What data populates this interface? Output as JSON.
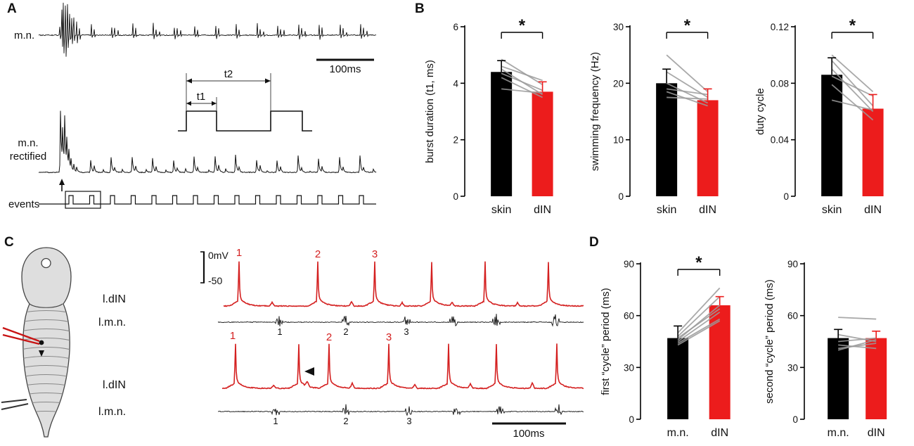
{
  "colors": {
    "trace_black": "#111111",
    "trace_red": "#d42020",
    "bar_black": "#000000",
    "bar_red": "#ec1c1c",
    "paired_gray": "#9a9a9a"
  },
  "panels": {
    "A": {
      "label": "A",
      "trace1_label": "m.n.",
      "scalebar_label": "100ms",
      "inset_t1": "t1",
      "inset_t2": "t2",
      "rectified_label_line1": "m.n.",
      "rectified_label_line2": "rectified",
      "events_label": "events"
    },
    "B": {
      "label": "B"
    },
    "C": {
      "label": "C",
      "voltage_scale_top": "0mV",
      "voltage_scale_bottom": "-50",
      "din_label": "l.dIN",
      "mn_label": "l.m.n.",
      "spike_numbers": [
        "1",
        "2",
        "3"
      ],
      "scalebar_label": "100ms"
    },
    "D": {
      "label": "D"
    }
  },
  "chart_data": [
    {
      "type": "bar",
      "ylabel": "burst duration (t1, ms)",
      "categories": [
        "skin",
        "dIN"
      ],
      "values": [
        4.4,
        3.7
      ],
      "errors": [
        0.4,
        0.35
      ],
      "bar_colors": [
        "#000000",
        "#ec1c1c"
      ],
      "ylim": [
        0,
        6
      ],
      "yticks": [
        0,
        2,
        4,
        6
      ],
      "ytick_labels": [
        "0",
        "2",
        "4",
        "6"
      ],
      "significance": "*",
      "paired_lines": [
        [
          4.85,
          3.95
        ],
        [
          4.6,
          4.1
        ],
        [
          4.5,
          3.6
        ],
        [
          4.35,
          3.75
        ],
        [
          4.2,
          3.5
        ],
        [
          3.8,
          3.65
        ]
      ]
    },
    {
      "type": "bar",
      "ylabel": "swimming frequency (Hz)",
      "categories": [
        "skin",
        "dIN"
      ],
      "values": [
        20,
        17
      ],
      "errors": [
        2.5,
        2
      ],
      "bar_colors": [
        "#000000",
        "#ec1c1c"
      ],
      "ylim": [
        0,
        30
      ],
      "yticks": [
        0,
        10,
        20,
        30
      ],
      "ytick_labels": [
        "0",
        "10",
        "20",
        "30"
      ],
      "significance": "*",
      "paired_lines": [
        [
          25,
          18.5
        ],
        [
          22,
          17.5
        ],
        [
          20,
          16.5
        ],
        [
          19,
          18
        ],
        [
          18.5,
          16
        ],
        [
          17.5,
          17.2
        ]
      ]
    },
    {
      "type": "bar",
      "ylabel": "duty cycle",
      "categories": [
        "skin",
        "dIN"
      ],
      "values": [
        0.086,
        0.062
      ],
      "errors": [
        0.012,
        0.01
      ],
      "bar_colors": [
        "#000000",
        "#ec1c1c"
      ],
      "ylim": [
        0,
        0.12
      ],
      "yticks": [
        0,
        0.04,
        0.08,
        0.12
      ],
      "ytick_labels": [
        "0",
        "0.04",
        "0.08",
        "0.12"
      ],
      "significance": "*",
      "paired_lines": [
        [
          0.1,
          0.074
        ],
        [
          0.096,
          0.064
        ],
        [
          0.09,
          0.06
        ],
        [
          0.085,
          0.071
        ],
        [
          0.079,
          0.054
        ],
        [
          0.068,
          0.061
        ]
      ]
    },
    {
      "type": "bar",
      "ylabel": "first “cycle” period (ms)",
      "categories": [
        "m.n.",
        "dIN"
      ],
      "values": [
        47,
        66
      ],
      "errors": [
        7,
        5
      ],
      "bar_colors": [
        "#000000",
        "#ec1c1c"
      ],
      "ylim": [
        0,
        90
      ],
      "yticks": [
        0,
        30,
        60,
        90
      ],
      "ytick_labels": [
        "0",
        "30",
        "60",
        "90"
      ],
      "significance": "*",
      "paired_lines": [
        [
          44,
          58
        ],
        [
          45,
          62
        ],
        [
          46,
          66
        ],
        [
          48,
          71
        ],
        [
          50,
          76
        ],
        [
          43,
          57
        ],
        [
          47,
          64
        ]
      ]
    },
    {
      "type": "bar",
      "ylabel": "second “cycle” period (ms)",
      "categories": [
        "m.n.",
        "dIN"
      ],
      "values": [
        47,
        47
      ],
      "errors": [
        5,
        4
      ],
      "bar_colors": [
        "#000000",
        "#ec1c1c"
      ],
      "ylim": [
        0,
        90
      ],
      "yticks": [
        0,
        30,
        60,
        90
      ],
      "ytick_labels": [
        "0",
        "30",
        "60",
        "90"
      ],
      "significance": null,
      "paired_lines": [
        [
          59,
          58
        ],
        [
          49,
          45
        ],
        [
          45,
          47
        ],
        [
          43,
          41
        ],
        [
          41,
          44
        ],
        [
          40,
          46
        ]
      ]
    }
  ]
}
